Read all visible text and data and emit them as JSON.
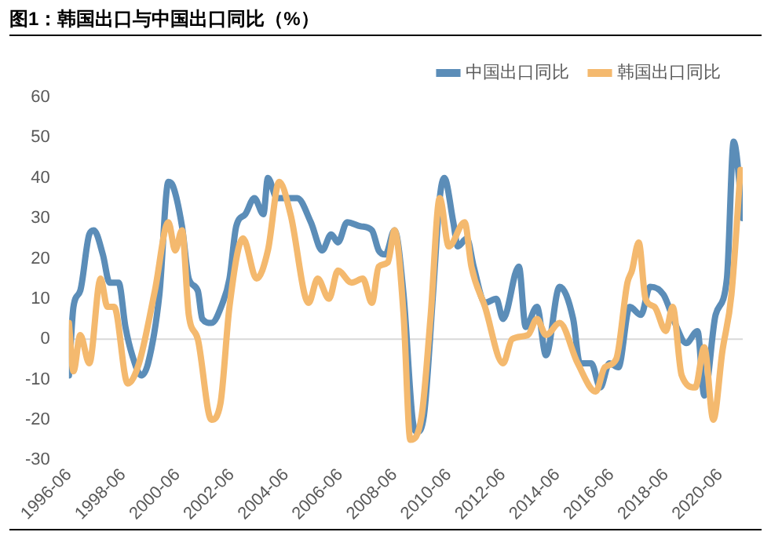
{
  "chart_data": {
    "type": "line",
    "title": "图1：韩国出口与中国出口同比（%）",
    "xlim": [
      "1996-06",
      "2021-04"
    ],
    "xticks": [
      "1996-06",
      "1998-06",
      "2000-06",
      "2002-06",
      "2004-06",
      "2006-06",
      "2008-06",
      "2010-06",
      "2012-06",
      "2014-06",
      "2016-06",
      "2018-06",
      "2020-06"
    ],
    "ylim": [
      -30,
      60
    ],
    "yticks": [
      -30,
      -20,
      -10,
      0,
      10,
      20,
      30,
      40,
      50,
      60
    ],
    "grid": false,
    "legend": "top right",
    "marker": "none",
    "line_style": "solid",
    "ref_lines": [
      {
        "axis": "y",
        "value": 0,
        "color": "#d9d9d9"
      }
    ],
    "series": [
      {
        "name": "中国出口同比",
        "color": "#5b8db8",
        "x": [
          "1996-06",
          "1996-08",
          "1996-11",
          "1997-03",
          "1997-05",
          "1997-09",
          "1997-12",
          "1998-04",
          "1998-07",
          "1998-10",
          "1999-02",
          "1999-05",
          "1999-10",
          "2000-02",
          "2000-04",
          "2000-08",
          "2000-11",
          "2001-03",
          "2001-05",
          "2001-09",
          "2002-02",
          "2002-05",
          "2002-08",
          "2002-12",
          "2003-04",
          "2003-08",
          "2003-10",
          "2004-02",
          "2004-05",
          "2004-11",
          "2005-05",
          "2005-10",
          "2006-02",
          "2006-05",
          "2006-09",
          "2007-03",
          "2007-08",
          "2007-11",
          "2008-02",
          "2008-06",
          "2008-10",
          "2009-02",
          "2009-04",
          "2009-07",
          "2009-11",
          "2010-02",
          "2010-04",
          "2010-08",
          "2010-10",
          "2011-02",
          "2011-05",
          "2011-10",
          "2012-03",
          "2012-06",
          "2013-01",
          "2013-04",
          "2013-09",
          "2014-01",
          "2014-07",
          "2015-01",
          "2015-04",
          "2015-09",
          "2016-01",
          "2016-05",
          "2016-09",
          "2017-02",
          "2017-07",
          "2017-11",
          "2018-05",
          "2018-10",
          "2019-03",
          "2019-08",
          "2019-11",
          "2020-04",
          "2020-09",
          "2020-12",
          "2021-04"
        ],
        "values": [
          -9,
          8,
          12,
          26,
          27,
          21,
          14,
          14,
          3,
          -4,
          -9,
          -6,
          11,
          39,
          38,
          28,
          15,
          12,
          5,
          4,
          9,
          15,
          28,
          31,
          35,
          31,
          40,
          35,
          35,
          35,
          29,
          22,
          26,
          24,
          29,
          28,
          27,
          22,
          21,
          27,
          11,
          -20,
          -23,
          -19,
          11,
          35,
          40,
          29,
          23,
          25,
          18,
          9,
          10,
          5,
          18,
          3,
          8,
          -4,
          13,
          5,
          -6,
          -6,
          -12,
          -6,
          -7,
          8,
          6,
          13,
          11,
          4,
          -1,
          2,
          -14,
          6,
          15,
          49,
          30
        ]
      },
      {
        "name": "韩国出口同比",
        "color": "#f4b96e",
        "x": [
          "1996-06",
          "1996-08",
          "1996-11",
          "1997-03",
          "1997-08",
          "1997-11",
          "1998-02",
          "1998-08",
          "1999-01",
          "1999-08",
          "2000-02",
          "2000-05",
          "2000-08",
          "2000-11",
          "2001-03",
          "2001-09",
          "2002-01",
          "2002-05",
          "2002-11",
          "2003-05",
          "2003-10",
          "2004-03",
          "2004-08",
          "2005-04",
          "2005-08",
          "2006-01",
          "2006-05",
          "2006-11",
          "2007-04",
          "2007-08",
          "2007-11",
          "2008-03",
          "2008-06",
          "2008-10",
          "2009-01",
          "2009-06",
          "2009-10",
          "2010-02",
          "2010-06",
          "2011-01",
          "2011-04",
          "2011-10",
          "2012-06",
          "2012-10",
          "2013-05",
          "2013-09",
          "2014-01",
          "2014-07",
          "2015-03",
          "2015-11",
          "2016-03",
          "2016-08",
          "2017-01",
          "2017-03",
          "2017-06",
          "2017-09",
          "2018-01",
          "2018-06",
          "2018-09",
          "2019-01",
          "2019-07",
          "2019-11",
          "2020-03",
          "2020-07",
          "2020-11",
          "2021-03"
        ],
        "values": [
          4,
          -8,
          1,
          -6,
          15,
          8,
          8,
          -11,
          -6,
          12,
          29,
          22,
          27,
          6,
          0,
          -20,
          -16,
          8,
          25,
          15,
          22,
          39,
          31,
          9,
          15,
          10,
          17,
          14,
          15,
          9,
          18,
          19,
          27,
          6,
          -25,
          -19,
          6,
          35,
          23,
          29,
          18,
          8,
          -6,
          0,
          1,
          5,
          1,
          4,
          -6,
          -13,
          -7,
          -5,
          14,
          17,
          24,
          10,
          8,
          2,
          8,
          -9,
          -12,
          -2,
          -20,
          -3,
          11,
          42
        ]
      }
    ]
  }
}
